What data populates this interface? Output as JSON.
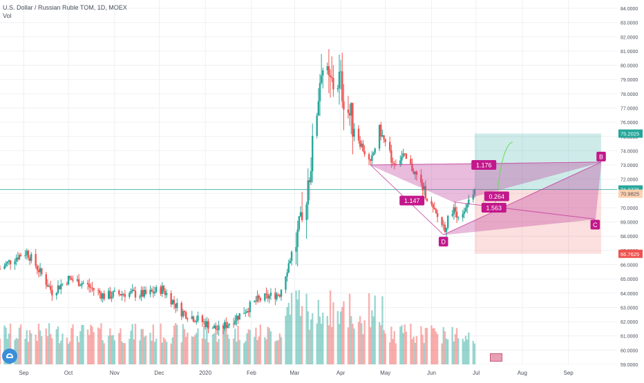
{
  "header": {
    "title": "U.S. Dollar / Russian Ruble TOM, 1D, MOEX",
    "vol_label": "Vol"
  },
  "colors": {
    "up": "#26a69a",
    "down": "#ef5350",
    "pattern_fill": "#c2409c",
    "target_zone": "#26a69a",
    "stop_zone": "#ef5350",
    "current_price_line": "#26a69a",
    "projection": "#64dc5a",
    "badge_green": "#26a69a",
    "badge_orange": "#ffd0b0",
    "badge_red": "#ef5350"
  },
  "chart_data": {
    "type": "candlestick",
    "title": "U.S. Dollar / Russian Ruble TOM, 1D, MOEX",
    "x_axis": {
      "labels": [
        "Sep",
        "Oct",
        "Nov",
        "Dec",
        "2020",
        "Feb",
        "Mar",
        "Apr",
        "May",
        "Jun",
        "Jul",
        "Aug",
        "Sep"
      ]
    },
    "y_axis": {
      "position": "right",
      "range": [
        59.0,
        84.0
      ],
      "ticks": [
        "84.0000",
        "83.0000",
        "82.0000",
        "81.0000",
        "80.0000",
        "79.0000",
        "78.0000",
        "77.0000",
        "76.0000",
        "75.0000",
        "74.0000",
        "73.0000",
        "72.0000",
        "71.0000",
        "70.0000",
        "69.0000",
        "68.0000",
        "67.0000",
        "66.0000",
        "65.0000",
        "64.0000",
        "63.0000",
        "62.0000",
        "61.0000",
        "60.0000",
        "59.0000"
      ]
    },
    "grid": true,
    "price_path": [
      {
        "date": "2019-08-16",
        "price": 65.7
      },
      {
        "date": "2019-08-26",
        "price": 66.5
      },
      {
        "date": "2019-09-03",
        "price": 66.9
      },
      {
        "date": "2019-09-10",
        "price": 65.8
      },
      {
        "date": "2019-09-20",
        "price": 64.1
      },
      {
        "date": "2019-10-01",
        "price": 65.0
      },
      {
        "date": "2019-10-11",
        "price": 64.7
      },
      {
        "date": "2019-10-25",
        "price": 63.8
      },
      {
        "date": "2019-11-08",
        "price": 64.0
      },
      {
        "date": "2019-11-22",
        "price": 63.9
      },
      {
        "date": "2019-12-03",
        "price": 64.3
      },
      {
        "date": "2019-12-16",
        "price": 62.7
      },
      {
        "date": "2019-12-30",
        "price": 62.0
      },
      {
        "date": "2020-01-10",
        "price": 61.4
      },
      {
        "date": "2020-01-23",
        "price": 62.4
      },
      {
        "date": "2020-02-05",
        "price": 63.5
      },
      {
        "date": "2020-02-20",
        "price": 64.0
      },
      {
        "date": "2020-02-28",
        "price": 66.8
      },
      {
        "date": "2020-03-06",
        "price": 68.7
      },
      {
        "date": "2020-03-10",
        "price": 72.0
      },
      {
        "date": "2020-03-13",
        "price": 74.0
      },
      {
        "date": "2020-03-16",
        "price": 77.0
      },
      {
        "date": "2020-03-19",
        "price": 80.2
      },
      {
        "date": "2020-03-24",
        "price": 78.5
      },
      {
        "date": "2020-03-31",
        "price": 79.0
      },
      {
        "date": "2020-04-07",
        "price": 76.5
      },
      {
        "date": "2020-04-14",
        "price": 74.6
      },
      {
        "date": "2020-04-21",
        "price": 73.0
      },
      {
        "date": "2020-04-27",
        "price": 75.5
      },
      {
        "date": "2020-05-06",
        "price": 73.2
      },
      {
        "date": "2020-05-13",
        "price": 73.6
      },
      {
        "date": "2020-05-20",
        "price": 72.6
      },
      {
        "date": "2020-05-27",
        "price": 71.2
      },
      {
        "date": "2020-06-03",
        "price": 69.6
      },
      {
        "date": "2020-06-10",
        "price": 68.6
      },
      {
        "date": "2020-06-15",
        "price": 69.9
      },
      {
        "date": "2020-06-22",
        "price": 69.3
      },
      {
        "date": "2020-06-29",
        "price": 71.0
      }
    ],
    "volume": "relative bars in lower pane, green on up days and red on down days",
    "price_labels": [
      {
        "value": 75.2025,
        "text": "75.2025",
        "style": "green"
      },
      {
        "value": 71.2775,
        "text": "71.2775",
        "style": "green"
      },
      {
        "value": 70.9825,
        "text": "70.9825",
        "style": "orange"
      },
      {
        "value": 66.7625,
        "text": "66.7625",
        "style": "red"
      }
    ],
    "position_tool": {
      "start": "2020-06-30",
      "end": "2020-09-23",
      "entry": 71.2775,
      "target": 75.2025,
      "stop": 66.7625
    },
    "current_price": 71.2775,
    "harmonic_pattern": {
      "points": [
        {
          "label": "",
          "date": "2020-04-21",
          "price": 73.0
        },
        {
          "label": "",
          "date": "2020-06-16",
          "price": 70.4
        },
        {
          "label": "D",
          "date": "2020-06-09",
          "price": 68.1
        },
        {
          "label": "C",
          "date": "2020-09-19",
          "price": 69.2
        },
        {
          "label": "B",
          "date": "2020-09-23",
          "price": 73.2
        }
      ],
      "ratios": [
        "1.176",
        "1.147",
        "0.264",
        "1.563"
      ]
    },
    "projection_curve": true
  }
}
